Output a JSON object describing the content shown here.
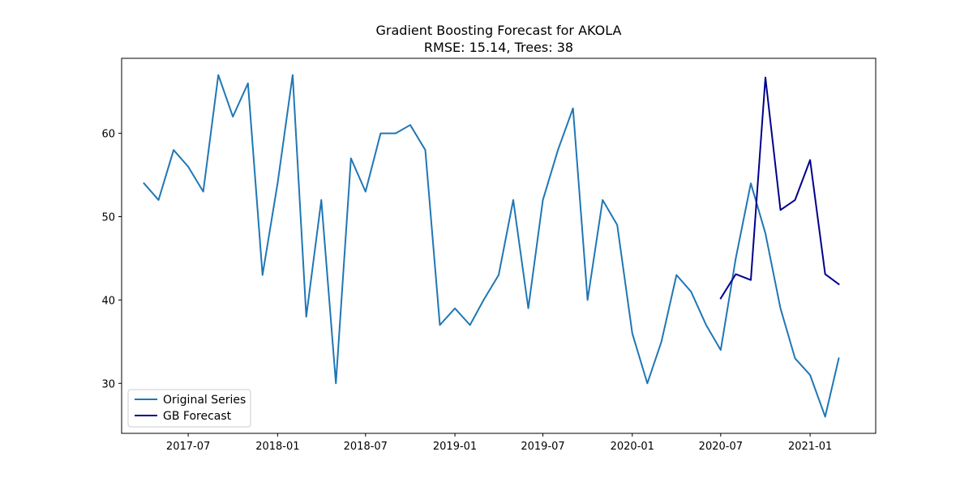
{
  "chart_data": {
    "type": "line",
    "title": "Gradient Boosting Forecast for AKOLA",
    "subtitle": "RMSE: 15.14, Trees: 38",
    "xlabel": "",
    "ylabel": "",
    "x_ticks": [
      "2017-07",
      "2018-01",
      "2018-07",
      "2019-01",
      "2019-07",
      "2020-01",
      "2020-07",
      "2021-01"
    ],
    "y_ticks": [
      30,
      40,
      50,
      60
    ],
    "xlim": [
      "2017-02-14",
      "2021-05-16"
    ],
    "ylim": [
      24,
      69
    ],
    "grid": false,
    "legend_position": "lower-left",
    "series": [
      {
        "name": "Original Series",
        "color": "#1f77b4",
        "x": [
          "2017-04-01",
          "2017-05-01",
          "2017-06-01",
          "2017-07-01",
          "2017-08-01",
          "2017-09-01",
          "2017-10-01",
          "2017-11-01",
          "2017-12-01",
          "2018-01-01",
          "2018-02-01",
          "2018-03-01",
          "2018-04-01",
          "2018-05-01",
          "2018-06-01",
          "2018-07-01",
          "2018-08-01",
          "2018-09-01",
          "2018-10-01",
          "2018-11-01",
          "2018-12-01",
          "2019-01-01",
          "2019-02-01",
          "2019-03-01",
          "2019-04-01",
          "2019-05-01",
          "2019-06-01",
          "2019-07-01",
          "2019-08-01",
          "2019-09-01",
          "2019-10-01",
          "2019-11-01",
          "2019-12-01",
          "2020-01-01",
          "2020-02-01",
          "2020-03-01",
          "2020-04-01",
          "2020-05-01",
          "2020-06-01",
          "2020-07-01",
          "2020-08-01",
          "2020-09-01",
          "2020-10-01",
          "2020-11-01",
          "2020-12-01",
          "2021-01-01",
          "2021-02-01",
          "2021-03-01"
        ],
        "values": [
          54,
          52,
          58,
          56,
          53,
          67,
          62,
          66,
          43,
          54,
          67,
          38,
          52,
          30,
          57,
          53,
          60,
          60,
          61,
          58,
          37,
          39,
          37,
          40,
          43,
          52,
          39,
          52,
          58,
          63,
          40,
          52,
          49,
          36,
          30,
          35,
          43,
          41,
          37,
          34,
          45,
          54,
          48,
          39,
          33,
          31,
          26,
          33
        ]
      },
      {
        "name": "GB Forecast",
        "color": "#00008b",
        "x": [
          "2020-07-01",
          "2020-08-01",
          "2020-09-01",
          "2020-10-01",
          "2020-11-01",
          "2020-12-01",
          "2021-01-01",
          "2021-02-01",
          "2021-03-01"
        ],
        "values": [
          40.2,
          43.1,
          42.4,
          66.7,
          50.8,
          52.0,
          56.8,
          43.1,
          41.9
        ]
      }
    ]
  }
}
